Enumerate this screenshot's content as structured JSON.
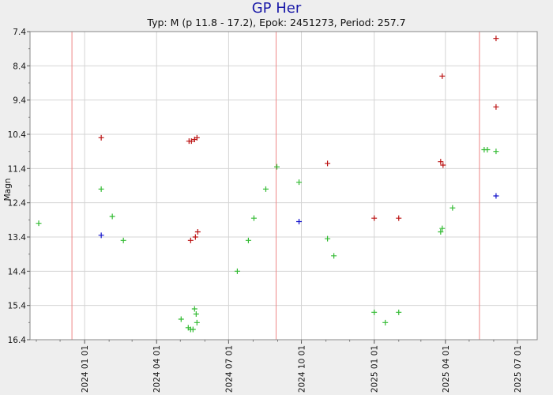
{
  "chart_data": {
    "type": "scatter",
    "title": "GP Her",
    "subtitle": "Typ: M (p 11.8 - 17.2), Epok: 2451273, Period: 257.7",
    "xlabel": "",
    "ylabel": "Magn",
    "ylim": [
      7.4,
      16.4
    ],
    "y_inverted": true,
    "y_ticks": [
      "7.4",
      "8.4",
      "9.4",
      "10.4",
      "11.4",
      "12.4",
      "13.4",
      "14.4",
      "15.4",
      "16.4"
    ],
    "xlim": [
      "2023-10-24",
      "2025-07-26"
    ],
    "x_ticks": [
      "2024 01 01",
      "2024 04 01",
      "2024 07 01",
      "2024 10 01",
      "2025 01 01",
      "2025 04 01",
      "2025 07 01"
    ],
    "x_tick_dates": [
      "2024-01-01",
      "2024-04-01",
      "2024-07-01",
      "2024-10-01",
      "2025-01-01",
      "2025-04-01",
      "2025-07-01"
    ],
    "vertical_markers": [
      "2023-12-16",
      "2024-08-30",
      "2025-05-14"
    ],
    "grid": true,
    "colors": {
      "green": "#33bb33",
      "red": "#bb1111",
      "blue": "#1111cc",
      "marker_line": "#ee8888",
      "grid": "#d4d4d4",
      "plot_bg": "#ffffff",
      "title": "#1a1aa8"
    },
    "series": [
      {
        "color": "green",
        "points": [
          {
            "x": "2023-11-04",
            "y": 13.0
          },
          {
            "x": "2024-01-22",
            "y": 12.0
          },
          {
            "x": "2024-02-05",
            "y": 12.8
          },
          {
            "x": "2024-02-19",
            "y": 13.5
          },
          {
            "x": "2024-05-02",
            "y": 15.8
          },
          {
            "x": "2024-05-11",
            "y": 16.05
          },
          {
            "x": "2024-05-14",
            "y": 16.1
          },
          {
            "x": "2024-05-17",
            "y": 16.1
          },
          {
            "x": "2024-05-19",
            "y": 15.5
          },
          {
            "x": "2024-05-21",
            "y": 15.65
          },
          {
            "x": "2024-05-22",
            "y": 15.9
          },
          {
            "x": "2024-07-12",
            "y": 14.4
          },
          {
            "x": "2024-07-26",
            "y": 13.5
          },
          {
            "x": "2024-08-02",
            "y": 12.85
          },
          {
            "x": "2024-08-17",
            "y": 12.0
          },
          {
            "x": "2024-08-31",
            "y": 11.35
          },
          {
            "x": "2024-09-28",
            "y": 11.8
          },
          {
            "x": "2024-11-03",
            "y": 13.45
          },
          {
            "x": "2024-11-11",
            "y": 13.95
          },
          {
            "x": "2025-01-01",
            "y": 15.6
          },
          {
            "x": "2025-01-15",
            "y": 15.9
          },
          {
            "x": "2025-02-01",
            "y": 15.6
          },
          {
            "x": "2025-03-26",
            "y": 13.25
          },
          {
            "x": "2025-03-28",
            "y": 13.15
          },
          {
            "x": "2025-04-10",
            "y": 12.55
          },
          {
            "x": "2025-05-20",
            "y": 10.85
          },
          {
            "x": "2025-05-24",
            "y": 10.85
          },
          {
            "x": "2025-06-04",
            "y": 10.9
          }
        ]
      },
      {
        "color": "red",
        "points": [
          {
            "x": "2024-01-22",
            "y": 10.5
          },
          {
            "x": "2024-05-12",
            "y": 10.6
          },
          {
            "x": "2024-05-14",
            "y": 13.5
          },
          {
            "x": "2024-05-15",
            "y": 10.6
          },
          {
            "x": "2024-05-19",
            "y": 10.55
          },
          {
            "x": "2024-05-20",
            "y": 13.4
          },
          {
            "x": "2024-05-22",
            "y": 10.5
          },
          {
            "x": "2024-05-23",
            "y": 13.25
          },
          {
            "x": "2024-11-03",
            "y": 11.25
          },
          {
            "x": "2025-01-01",
            "y": 12.85
          },
          {
            "x": "2025-02-01",
            "y": 12.85
          },
          {
            "x": "2025-03-26",
            "y": 11.2
          },
          {
            "x": "2025-03-28",
            "y": 8.7
          },
          {
            "x": "2025-03-29",
            "y": 11.3
          },
          {
            "x": "2025-06-04",
            "y": 7.6
          },
          {
            "x": "2025-06-04",
            "y": 9.6
          }
        ]
      },
      {
        "color": "blue",
        "points": [
          {
            "x": "2024-01-22",
            "y": 13.35
          },
          {
            "x": "2024-09-28",
            "y": 12.95
          },
          {
            "x": "2025-06-04",
            "y": 12.2
          }
        ]
      }
    ]
  }
}
